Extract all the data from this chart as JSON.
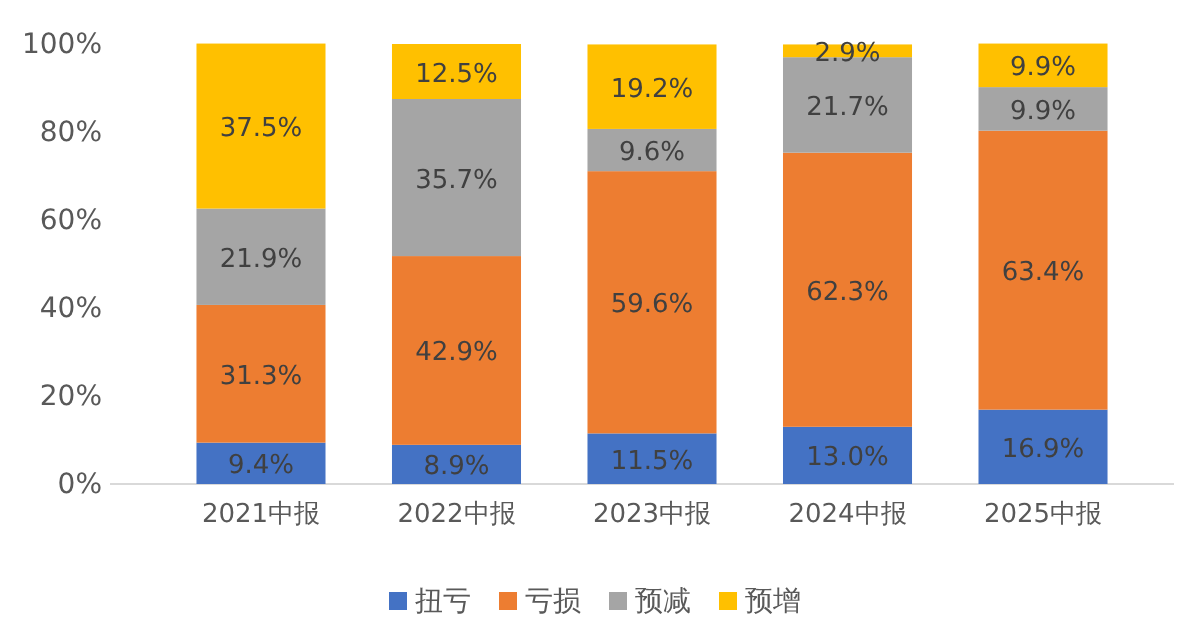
{
  "chart_data": {
    "type": "bar",
    "stacked": true,
    "categories": [
      "2021中报",
      "2022中报",
      "2023中报",
      "2024中报",
      "2025中报"
    ],
    "series": [
      {
        "name": "扭亏",
        "color": "#4472c4",
        "values": [
          9.4,
          8.9,
          11.5,
          13.0,
          16.9
        ],
        "value_labels": [
          "9.4%",
          "8.9%",
          "11.5%",
          "13.0%",
          "16.9%"
        ]
      },
      {
        "name": "亏损",
        "color": "#ed7d31",
        "values": [
          31.3,
          42.9,
          59.6,
          62.3,
          63.4
        ],
        "value_labels": [
          "31.3%",
          "42.9%",
          "59.6%",
          "62.3%",
          "63.4%"
        ]
      },
      {
        "name": "预减",
        "color": "#a5a5a5",
        "values": [
          21.9,
          35.7,
          9.6,
          21.7,
          9.9
        ],
        "value_labels": [
          "21.9%",
          "35.7%",
          "9.6%",
          "21.7%",
          "9.9%"
        ]
      },
      {
        "name": "预增",
        "color": "#ffc000",
        "values": [
          37.5,
          12.5,
          19.2,
          2.9,
          9.9
        ],
        "value_labels": [
          "37.5%",
          "12.5%",
          "19.2%",
          "2.9%",
          "9.9%"
        ]
      }
    ],
    "ylim": [
      0,
      100
    ],
    "yticks": [
      {
        "value": 0,
        "label": "0%"
      },
      {
        "value": 20,
        "label": "20%"
      },
      {
        "value": 40,
        "label": "40%"
      },
      {
        "value": 60,
        "label": "60%"
      },
      {
        "value": 80,
        "label": "80%"
      },
      {
        "value": 100,
        "label": "100%"
      }
    ],
    "grid": false,
    "legend": "bottom"
  }
}
